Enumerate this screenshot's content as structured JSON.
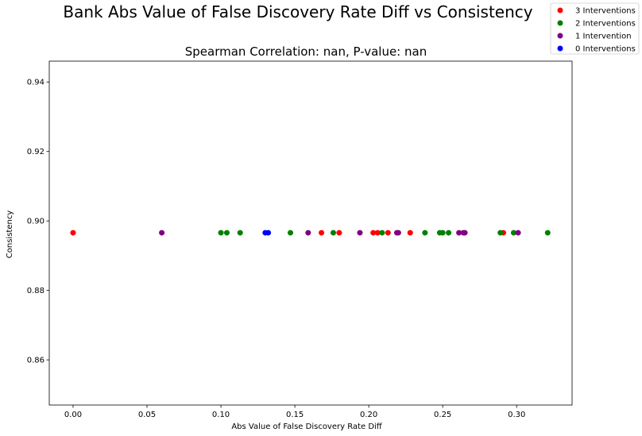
{
  "chart_data": {
    "type": "scatter",
    "title": "Bank Abs Value of False Discovery Rate Diff vs Consistency",
    "subtitle": "Spearman Correlation: nan, P-value: nan",
    "xlabel": "Abs Value of False Discovery Rate Diff",
    "ylabel": "Consistency",
    "xlim": [
      -0.0161,
      0.3375
    ],
    "ylim": [
      0.847,
      0.946
    ],
    "xticks": [
      0.0,
      0.05,
      0.1,
      0.15,
      0.2,
      0.25,
      0.3
    ],
    "xtick_labels": [
      "0.00",
      "0.05",
      "0.10",
      "0.15",
      "0.20",
      "0.25",
      "0.30"
    ],
    "yticks": [
      0.86,
      0.88,
      0.9,
      0.92,
      0.94
    ],
    "ytick_labels": [
      "0.86",
      "0.88",
      "0.90",
      "0.92",
      "0.94"
    ],
    "grid": false,
    "legend_position": "top-right",
    "series": [
      {
        "name": "3 Interventions",
        "color": "#ff0000",
        "x": [
          0.0,
          0.168,
          0.18,
          0.203,
          0.206,
          0.213,
          0.228,
          0.291
        ],
        "y": [
          0.8966,
          0.8966,
          0.8966,
          0.8966,
          0.8966,
          0.8966,
          0.8966,
          0.8966
        ]
      },
      {
        "name": "2 Interventions",
        "color": "#008000",
        "x": [
          0.1,
          0.104,
          0.113,
          0.147,
          0.176,
          0.209,
          0.238,
          0.248,
          0.25,
          0.254,
          0.289,
          0.298,
          0.321
        ],
        "y": [
          0.8966,
          0.8966,
          0.8966,
          0.8966,
          0.8966,
          0.8966,
          0.8966,
          0.8966,
          0.8966,
          0.8966,
          0.8966,
          0.8966,
          0.8966
        ]
      },
      {
        "name": "1 Intervention",
        "color": "#800080",
        "x": [
          0.06,
          0.159,
          0.194,
          0.219,
          0.22,
          0.261,
          0.264,
          0.265,
          0.301
        ],
        "y": [
          0.8966,
          0.8966,
          0.8966,
          0.8966,
          0.8966,
          0.8966,
          0.8966,
          0.8966,
          0.8966
        ]
      },
      {
        "name": "0 Interventions",
        "color": "#0000ff",
        "x": [
          0.13,
          0.132
        ],
        "y": [
          0.8966,
          0.8966
        ]
      }
    ]
  }
}
